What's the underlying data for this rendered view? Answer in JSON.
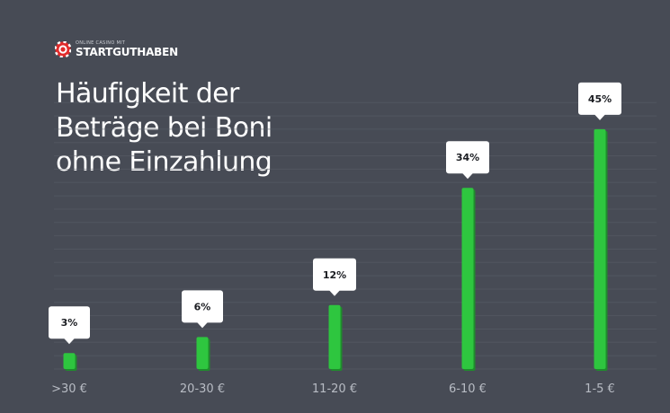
{
  "brand": {
    "tagline": "ONLINE CASINO MIT",
    "name": "STARTGUTHABEN",
    "icon": "casino-chip-icon"
  },
  "colors": {
    "background": "#474b55",
    "bar": "#2ec63f",
    "bar_shadow": "#1f8c2c",
    "gridline": "#5a5f69",
    "callout": "#ffffff"
  },
  "chart_data": {
    "type": "bar",
    "title": "Häufigkeit der Beträge bei Boni ohne Einzahlung",
    "xlabel": "",
    "ylabel": "",
    "categories": [
      ">30 €",
      "20-30 €",
      "11-20 €",
      "6-10 €",
      "1-5 €"
    ],
    "values": [
      3,
      6,
      12,
      34,
      45
    ],
    "labels": [
      "3%",
      "6%",
      "12%",
      "34%",
      "45%"
    ],
    "unit": "%",
    "ylim": [
      0,
      50
    ],
    "grid": true
  }
}
